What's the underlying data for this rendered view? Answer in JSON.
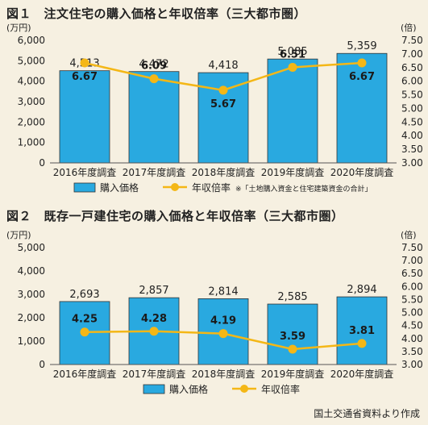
{
  "figures": [
    {
      "title": "図１　注文住宅の購入価格と年収倍率（三大都市圏）",
      "note": "※「土地購入資金と住宅建築資金の合計」"
    },
    {
      "title": "図２　既存一戸建住宅の購入価格と年収倍率（三大都市圏）",
      "note": ""
    }
  ],
  "source": "国土交通省資料より作成",
  "colors": {
    "bar": "#29a9e0",
    "line": "#f4b716",
    "background": "#f6f0e1"
  },
  "chart_data": [
    {
      "type": "bar",
      "categories": [
        "2016年度調査",
        "2017年度調査",
        "2018年度調査",
        "2019年度調査",
        "2020年度調査"
      ],
      "series": [
        {
          "name": "購入価格",
          "type": "bar",
          "axis": "left",
          "values": [
            4513,
            4472,
            4418,
            5085,
            5359
          ],
          "labels": [
            "4,513",
            "4,472",
            "4,418",
            "5,085",
            "5,359"
          ]
        },
        {
          "name": "年収倍率",
          "type": "line",
          "axis": "right",
          "values": [
            6.67,
            6.09,
            5.67,
            6.51,
            6.67
          ],
          "labels": [
            "6.67",
            "6.09",
            "5.67",
            "6.51",
            "6.67"
          ]
        }
      ],
      "ylabel_left": "(万円)",
      "ylabel_right": "(倍)",
      "ylim_left": [
        0,
        6000
      ],
      "ylim_right": [
        3.0,
        7.5
      ],
      "yticks_left": [
        "0",
        "1,000",
        "2,000",
        "3,000",
        "4,000",
        "5,000",
        "6,000"
      ],
      "yticks_right": [
        "3.00",
        "3.50",
        "4.00",
        "4.50",
        "5.00",
        "5.50",
        "6.00",
        "6.50",
        "7.00",
        "7.50"
      ],
      "legend": [
        "購入価格",
        "年収倍率"
      ],
      "legend_position": "bottom"
    },
    {
      "type": "bar",
      "categories": [
        "2016年度調査",
        "2017年度調査",
        "2018年度調査",
        "2019年度調査",
        "2020年度調査"
      ],
      "series": [
        {
          "name": "購入価格",
          "type": "bar",
          "axis": "left",
          "values": [
            2693,
            2857,
            2814,
            2585,
            2894
          ],
          "labels": [
            "2,693",
            "2,857",
            "2,814",
            "2,585",
            "2,894"
          ]
        },
        {
          "name": "年収倍率",
          "type": "line",
          "axis": "right",
          "values": [
            4.25,
            4.28,
            4.19,
            3.59,
            3.81
          ],
          "labels": [
            "4.25",
            "4.28",
            "4.19",
            "3.59",
            "3.81"
          ]
        }
      ],
      "ylabel_left": "(万円)",
      "ylabel_right": "(倍)",
      "ylim_left": [
        0,
        5000
      ],
      "ylim_right": [
        3.0,
        7.5
      ],
      "yticks_left": [
        "0",
        "1,000",
        "2,000",
        "3,000",
        "4,000",
        "5,000"
      ],
      "yticks_right": [
        "3.00",
        "3.50",
        "4.00",
        "4.50",
        "5.00",
        "5.50",
        "6.00",
        "6.50",
        "7.00",
        "7.50"
      ],
      "legend": [
        "購入価格",
        "年収倍率"
      ],
      "legend_position": "bottom"
    }
  ]
}
